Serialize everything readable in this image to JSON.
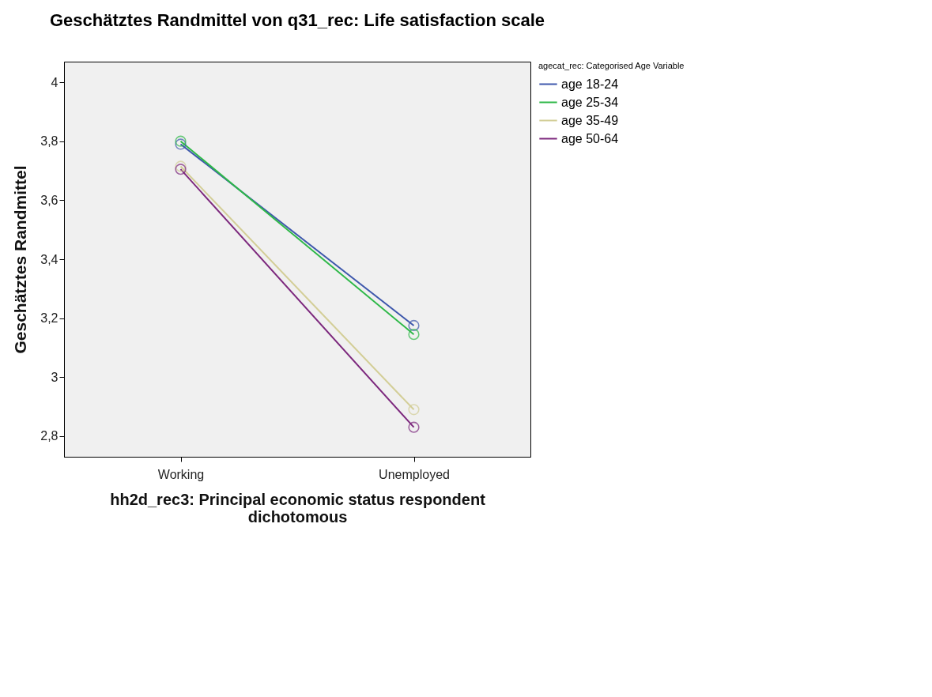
{
  "chart_data": {
    "type": "line",
    "title": "Geschätztes Randmittel von q31_rec: Life satisfaction scale",
    "xlabel": "hh2d_rec3: Principal economic status respondent\ndichotomous",
    "ylabel": "Geschätztes Randmittel",
    "legend_title": "agecat_rec: Categorised Age Variable",
    "categories": [
      "Working",
      "Unemployed"
    ],
    "series": [
      {
        "name": "age 18-24",
        "color": "#3e58ac",
        "values": [
          3.79,
          3.175
        ]
      },
      {
        "name": "age 25-34",
        "color": "#2eb848",
        "values": [
          3.8,
          3.145
        ]
      },
      {
        "name": "age 35-49",
        "color": "#d3ce97",
        "values": [
          3.715,
          2.89
        ]
      },
      {
        "name": "age 50-64",
        "color": "#7c287d",
        "values": [
          3.705,
          2.83
        ]
      }
    ],
    "ylim": [
      2.73,
      4.07
    ],
    "yticks": [
      {
        "value": 2.8,
        "label": "2,8"
      },
      3,
      {
        "value": 3.2,
        "label": "3,2"
      },
      {
        "value": 3.4,
        "label": "3,4"
      },
      {
        "value": 3.6,
        "label": "3,6"
      },
      {
        "value": 3.8,
        "label": "3,8"
      },
      4
    ],
    "grid": false,
    "legend": "top right",
    "marker": "circle",
    "line_style": "solid"
  }
}
